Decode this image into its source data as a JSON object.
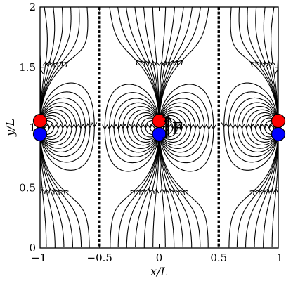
{
  "chart_data": {
    "type": "streamline",
    "xlabel": "x/L",
    "ylabel": "y/L",
    "xlim": [
      -1,
      1
    ],
    "ylim": [
      0,
      2
    ],
    "x_ticks": [
      "−1",
      "−0.5",
      "0",
      "0.5",
      "1"
    ],
    "x_tick_values": [
      -1,
      -0.5,
      0,
      0.5,
      1
    ],
    "y_ticks": [
      "0",
      "0.5",
      "1",
      "1.5",
      "2"
    ],
    "y_tick_values": [
      0,
      0.5,
      1,
      1.5,
      2
    ],
    "separatrices_x": [
      -0.5,
      0.5
    ],
    "particles": [
      {
        "x": -1,
        "y": 1.055,
        "color": "#ff0000"
      },
      {
        "x": -1,
        "y": 0.945,
        "color": "#0000ff"
      },
      {
        "x": 0,
        "y": 1.055,
        "color": "#ff0000"
      },
      {
        "x": 0,
        "y": 0.945,
        "color": "#0000ff"
      },
      {
        "x": 1,
        "y": 1.055,
        "color": "#ff0000"
      },
      {
        "x": 1,
        "y": 0.945,
        "color": "#0000ff"
      }
    ],
    "force": {
      "label": "F",
      "x": 0.085,
      "y": 1.0
    }
  }
}
